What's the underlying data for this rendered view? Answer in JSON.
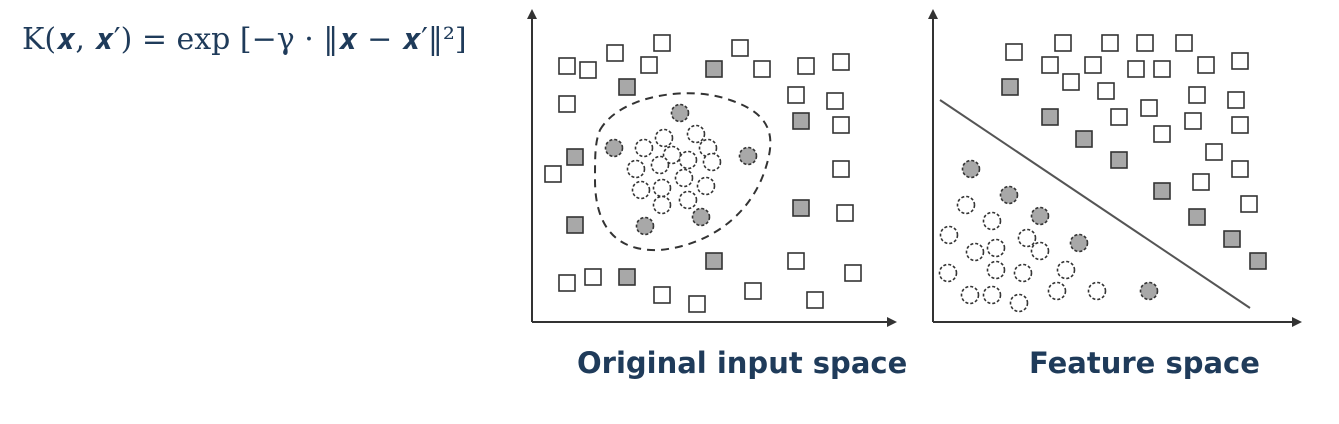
{
  "formula": {
    "text": "K(𝒙, 𝒙′) = exp [−γ · ‖𝒙 − 𝒙′‖²]"
  },
  "panels": {
    "left": {
      "caption": "Original input space"
    },
    "right": {
      "caption": "Feature space"
    }
  },
  "colors": {
    "text": "#1f3b5a",
    "stroke": "#333333",
    "fill_gray": "#a8a8a8",
    "fill_white": "#ffffff"
  }
}
